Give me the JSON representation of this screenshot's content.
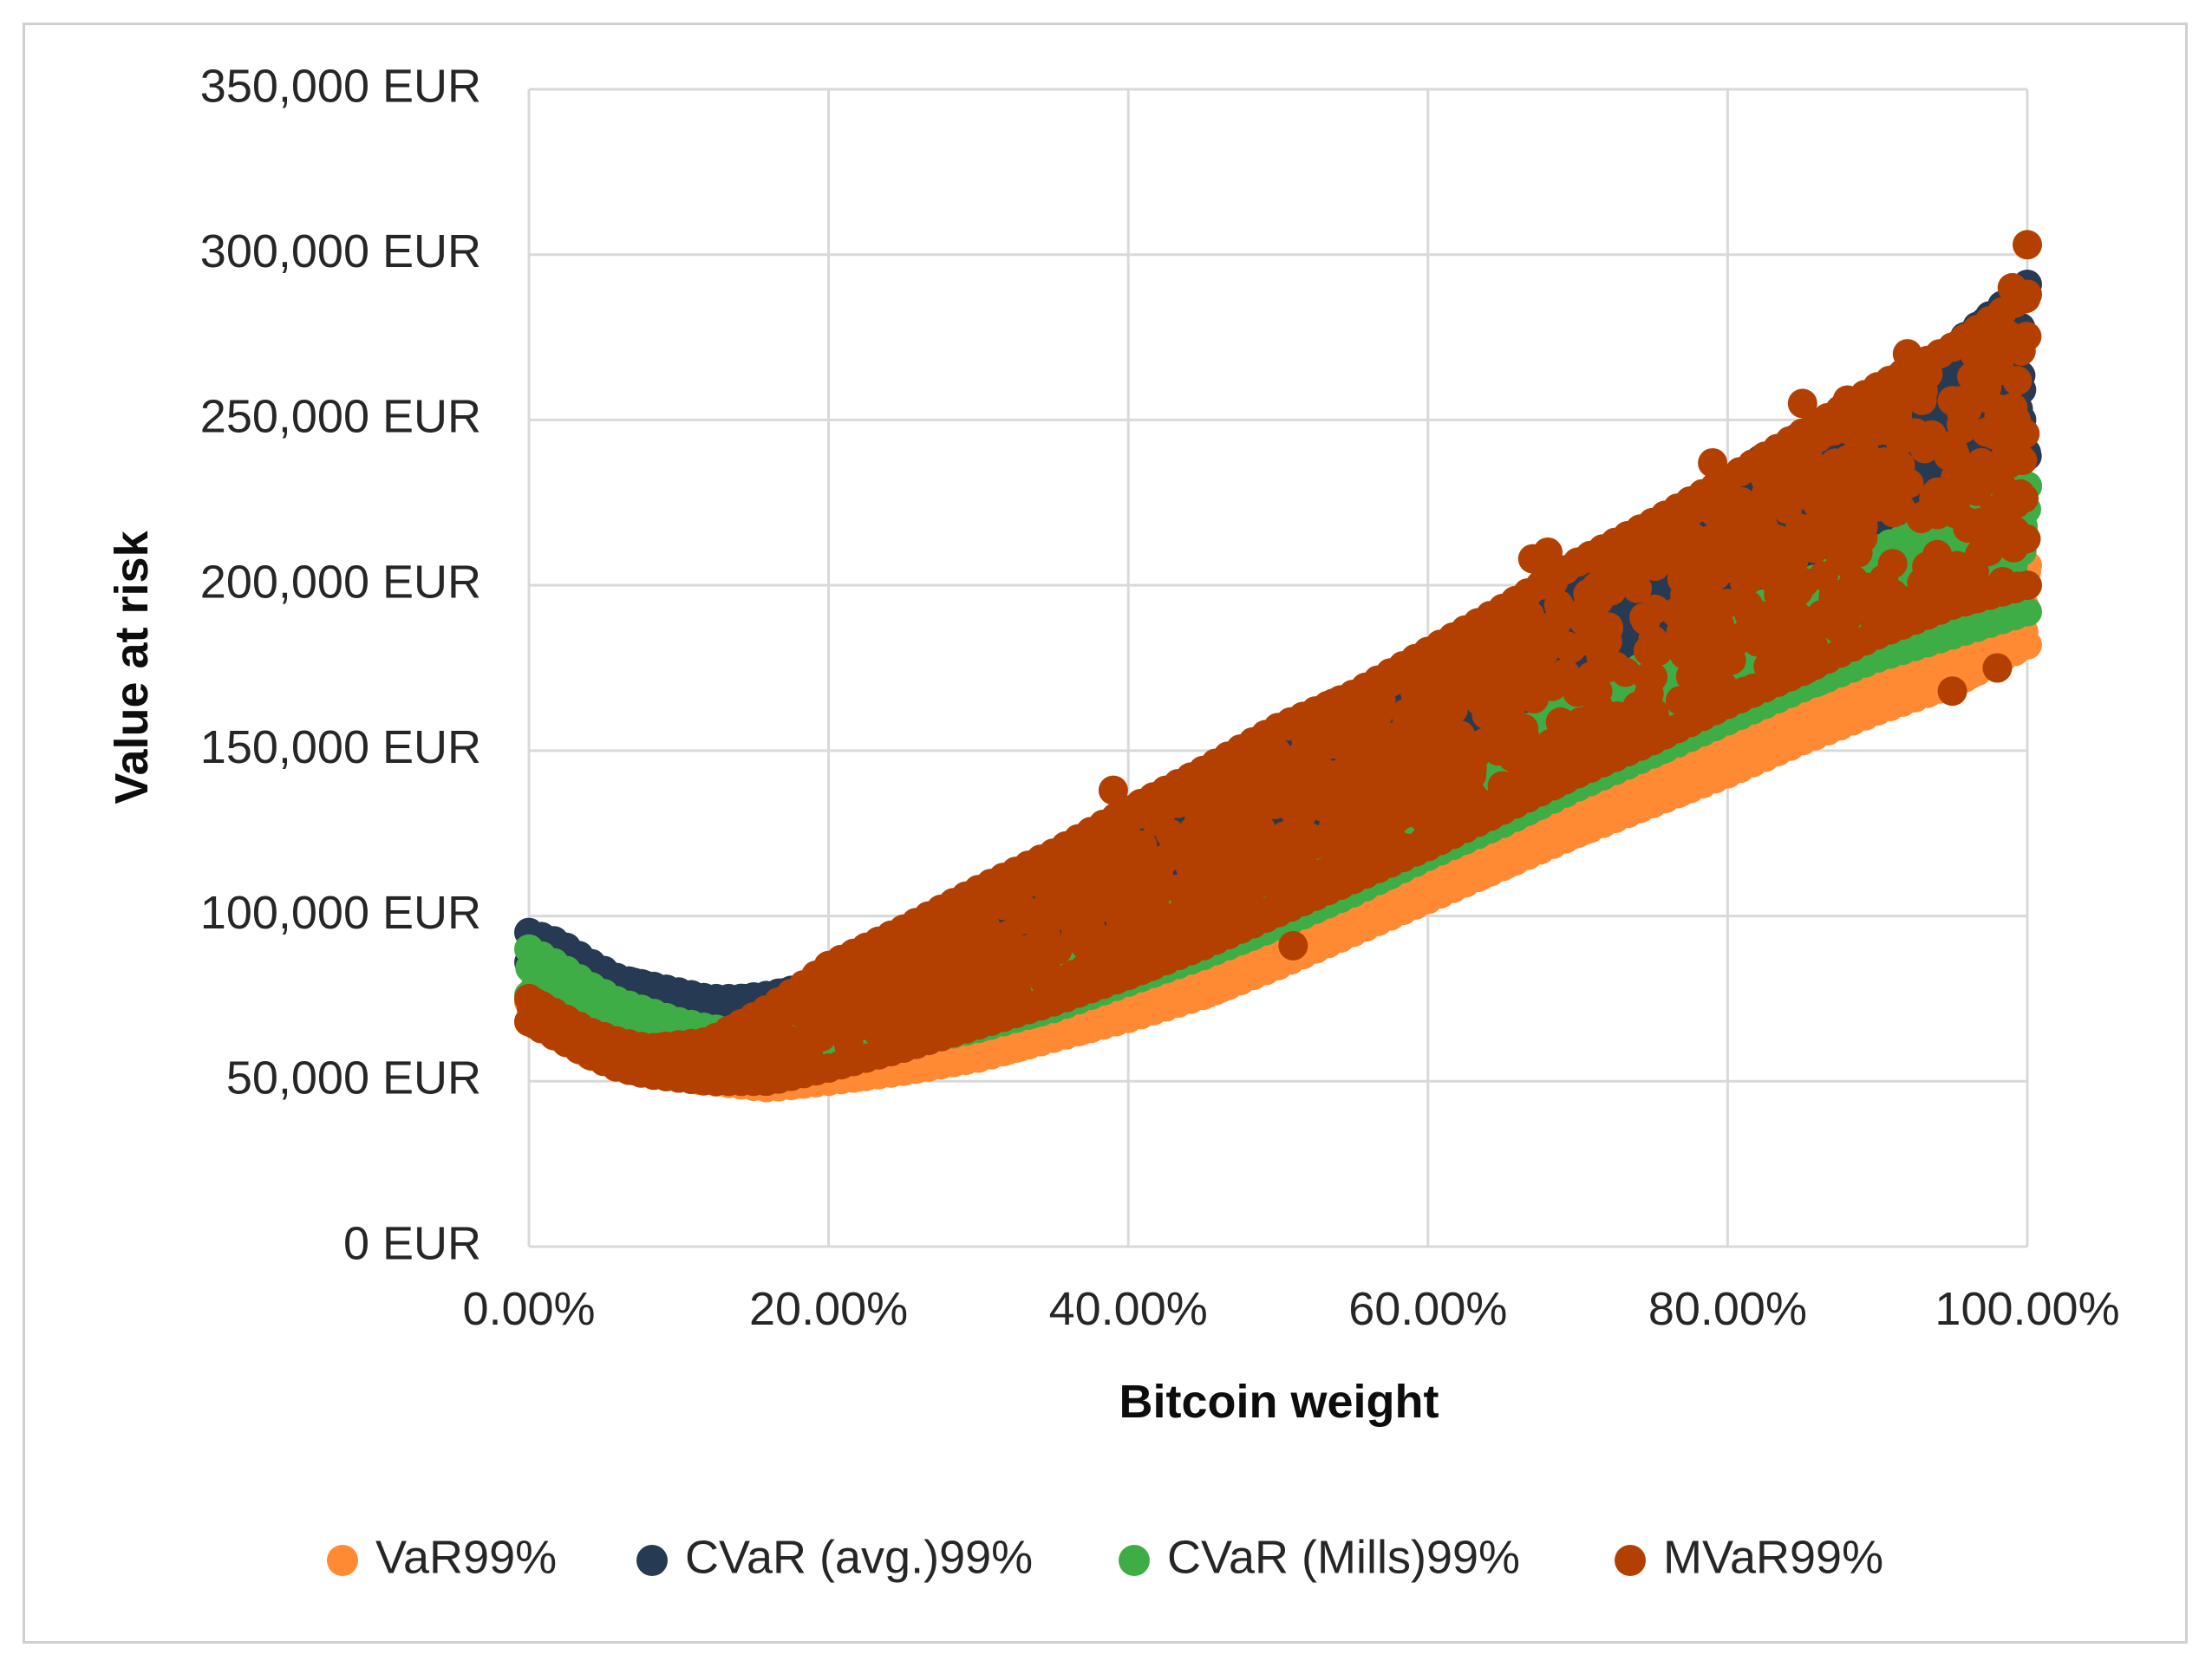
{
  "chart_data": {
    "type": "scatter",
    "title": "",
    "xlabel": "Bitcoin weight",
    "ylabel": "Value at risk",
    "xlim": [
      0,
      1
    ],
    "ylim": [
      0,
      350000
    ],
    "x_ticks": [
      0,
      0.2,
      0.4,
      0.6,
      0.8,
      1.0
    ],
    "x_tick_labels": [
      "0.00%",
      "20.00%",
      "40.00%",
      "60.00%",
      "80.00%",
      "100.00%"
    ],
    "y_ticks": [
      0,
      50000,
      100000,
      150000,
      200000,
      250000,
      300000,
      350000
    ],
    "y_tick_labels": [
      "0 EUR",
      "50,000 EUR",
      "100,000 EUR",
      "150,000 EUR",
      "200,000 EUR",
      "250,000 EUR",
      "300,000 EUR",
      "350,000 EUR"
    ],
    "grid": true,
    "legend_position": "bottom",
    "series": [
      {
        "name": "CVaR (avg.)99%",
        "color": "#263a54",
        "x": [
          0.0,
          0.02,
          0.04,
          0.06,
          0.08,
          0.1,
          0.12,
          0.14,
          0.16,
          0.18,
          0.2,
          0.25,
          0.3,
          0.35,
          0.4,
          0.45,
          0.5,
          0.55,
          0.6,
          0.65,
          0.7,
          0.75,
          0.8,
          0.85,
          0.9,
          0.95,
          1.0
        ],
        "y_low": [
          86000,
          83000,
          78000,
          73000,
          70000,
          67000,
          66000,
          66000,
          66000,
          65000,
          66000,
          71000,
          78000,
          86000,
          96000,
          106000,
          117000,
          129000,
          141000,
          154000,
          167000,
          180000,
          193000,
          205000,
          215000,
          225000,
          230000
        ],
        "y_high": [
          95000,
          92000,
          86000,
          81000,
          79000,
          77000,
          75000,
          75000,
          76000,
          78000,
          80000,
          88000,
          98000,
          108000,
          120000,
          133000,
          147000,
          161000,
          176000,
          190000,
          205000,
          218000,
          232000,
          246000,
          259000,
          272000,
          291000
        ]
      },
      {
        "name": "VaR99%",
        "color": "#ff8a33",
        "x": [
          0.0,
          0.02,
          0.04,
          0.06,
          0.08,
          0.1,
          0.12,
          0.14,
          0.16,
          0.18,
          0.2,
          0.25,
          0.3,
          0.35,
          0.4,
          0.45,
          0.5,
          0.55,
          0.6,
          0.65,
          0.7,
          0.75,
          0.8,
          0.85,
          0.9,
          0.95,
          1.0
        ],
        "y_low": [
          68000,
          63000,
          58000,
          55000,
          53000,
          51000,
          50000,
          49000,
          48000,
          49000,
          50000,
          53000,
          57000,
          63000,
          69000,
          76000,
          85000,
          95000,
          105000,
          115000,
          125000,
          134000,
          143000,
          153000,
          162000,
          170000,
          182000
        ],
        "y_high": [
          74000,
          69000,
          64000,
          61000,
          59000,
          57000,
          56000,
          56000,
          56000,
          57000,
          59000,
          64000,
          70000,
          78000,
          86000,
          95000,
          105000,
          116000,
          128000,
          139000,
          150000,
          160000,
          171000,
          181000,
          190000,
          198000,
          206000
        ]
      },
      {
        "name": "CVaR (Mills)99%",
        "color": "#3fad46",
        "x": [
          0.0,
          0.02,
          0.04,
          0.06,
          0.08,
          0.1,
          0.12,
          0.14,
          0.16,
          0.18,
          0.2,
          0.25,
          0.3,
          0.35,
          0.4,
          0.45,
          0.5,
          0.55,
          0.6,
          0.65,
          0.7,
          0.75,
          0.8,
          0.85,
          0.9,
          0.95,
          1.0
        ],
        "y_low": [
          76000,
          73000,
          68000,
          64000,
          61000,
          59000,
          58000,
          57000,
          56000,
          57000,
          58000,
          61000,
          66000,
          72000,
          80000,
          88000,
          97000,
          107000,
          118000,
          128000,
          139000,
          149000,
          159000,
          169000,
          178000,
          185000,
          192000
        ],
        "y_high": [
          90000,
          85000,
          79000,
          74000,
          71000,
          68000,
          66000,
          65000,
          65000,
          66000,
          67000,
          72000,
          78000,
          86000,
          95000,
          105000,
          116000,
          128000,
          141000,
          153000,
          165000,
          177000,
          189000,
          200000,
          211000,
          220000,
          230000
        ]
      },
      {
        "name": "MVaR99%",
        "color": "#b34000",
        "x": [
          0.0,
          0.02,
          0.04,
          0.06,
          0.08,
          0.1,
          0.12,
          0.14,
          0.16,
          0.18,
          0.2,
          0.25,
          0.3,
          0.35,
          0.4,
          0.45,
          0.5,
          0.55,
          0.6,
          0.65,
          0.7,
          0.75,
          0.8,
          0.85,
          0.9,
          0.95,
          1.0
        ],
        "y_low": [
          68000,
          63000,
          58000,
          54000,
          52000,
          51000,
          50000,
          50000,
          50000,
          52000,
          54000,
          60000,
          67000,
          74000,
          82000,
          91000,
          101000,
          111000,
          121000,
          132000,
          143000,
          153000,
          164000,
          174000,
          185000,
          194000,
          200000
        ],
        "y_high": [
          75000,
          70000,
          65000,
          62000,
          60000,
          61000,
          62000,
          67000,
          72000,
          78000,
          85000,
          96000,
          108000,
          119000,
          132000,
          144000,
          157000,
          167000,
          180000,
          193000,
          207000,
          219000,
          232000,
          246000,
          260000,
          272000,
          288000
        ],
        "outliers": [
          [
            1.0,
            303000
          ],
          [
            0.99,
            290000
          ],
          [
            0.92,
            270000
          ],
          [
            0.88,
            256000
          ],
          [
            0.85,
            255000
          ],
          [
            0.79,
            237000
          ],
          [
            0.67,
            208000
          ],
          [
            0.68,
            210000
          ],
          [
            0.39,
            138000
          ],
          [
            0.51,
            91000
          ],
          [
            0.98,
            175000
          ],
          [
            0.95,
            168000
          ]
        ]
      }
    ],
    "legend_order": [
      "VaR99%",
      "CVaR (avg.)99%",
      "CVaR (Mills)99%",
      "MVaR99%"
    ]
  }
}
